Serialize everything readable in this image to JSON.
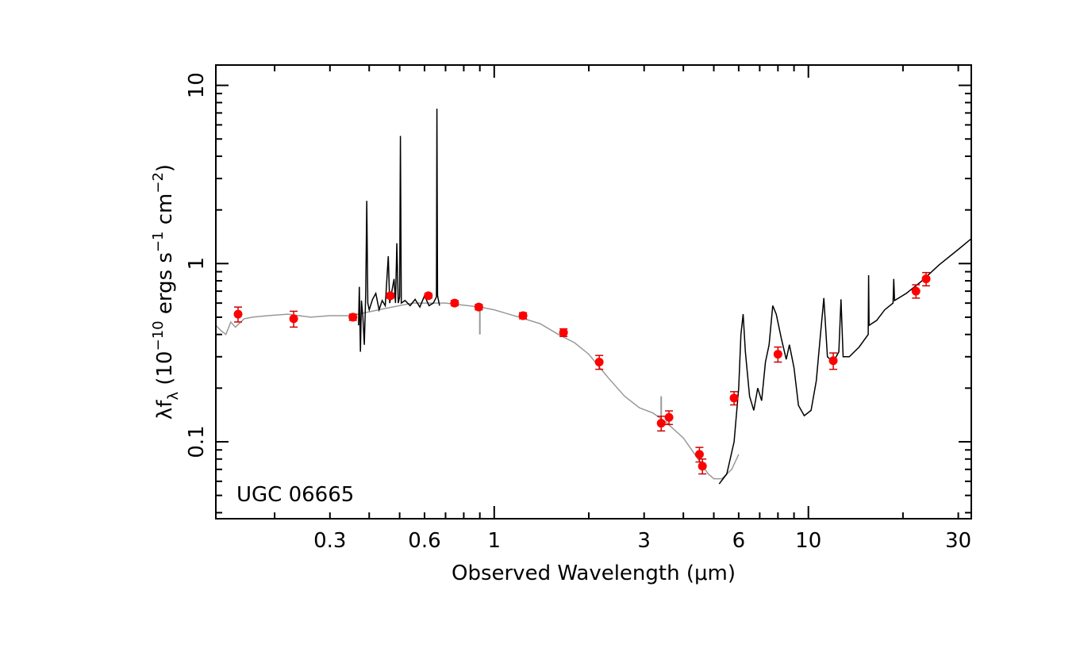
{
  "chart_data": {
    "type": "scatter",
    "title": "",
    "annotation": "UGC 06665",
    "xlabel": "Observed Wavelength (μm)",
    "ylabel": {
      "prefix": "λf",
      "sub": "λ",
      "open": " (10",
      "exp1": "−10",
      "mid": " ergs s",
      "exp2": "−1",
      "mid2": " cm",
      "exp3": "−2",
      "close": ")"
    },
    "xscale": "log",
    "yscale": "log",
    "xlim": [
      0.13,
      33
    ],
    "ylim": [
      0.037,
      13
    ],
    "xticks": [
      {
        "value": 0.3,
        "label": "0.3"
      },
      {
        "value": 0.6,
        "label": "0.6"
      },
      {
        "value": 1,
        "label": "1"
      },
      {
        "value": 3,
        "label": "3"
      },
      {
        "value": 6,
        "label": "6"
      },
      {
        "value": 10,
        "label": "10"
      },
      {
        "value": 30,
        "label": "30"
      }
    ],
    "yticks": [
      {
        "value": 0.1,
        "label": "0.1"
      },
      {
        "value": 1,
        "label": "1"
      },
      {
        "value": 10,
        "label": "10"
      }
    ],
    "colors": {
      "points": "#ff0000",
      "errorbars": "#cc0000",
      "model": "#999999",
      "spectrum": "#000000",
      "axes": "#000000"
    },
    "model_template": [
      [
        0.13,
        0.45
      ],
      [
        0.135,
        0.42
      ],
      [
        0.14,
        0.4
      ],
      [
        0.145,
        0.47
      ],
      [
        0.15,
        0.44
      ],
      [
        0.16,
        0.49
      ],
      [
        0.17,
        0.5
      ],
      [
        0.19,
        0.51
      ],
      [
        0.22,
        0.52
      ],
      [
        0.26,
        0.5
      ],
      [
        0.3,
        0.51
      ],
      [
        0.35,
        0.51
      ],
      [
        0.45,
        0.56
      ],
      [
        0.55,
        0.6
      ],
      [
        0.7,
        0.6
      ],
      [
        0.9,
        0.57
      ],
      [
        1.0,
        0.55
      ],
      [
        1.2,
        0.5
      ],
      [
        1.4,
        0.46
      ],
      [
        1.6,
        0.4
      ],
      [
        1.8,
        0.36
      ],
      [
        2.0,
        0.31
      ],
      [
        2.3,
        0.23
      ],
      [
        2.6,
        0.18
      ],
      [
        2.9,
        0.155
      ],
      [
        3.2,
        0.145
      ],
      [
        3.5,
        0.13
      ],
      [
        4.0,
        0.105
      ],
      [
        4.5,
        0.078
      ],
      [
        4.8,
        0.066
      ],
      [
        5.0,
        0.062
      ],
      [
        5.3,
        0.062
      ],
      [
        5.7,
        0.07
      ],
      [
        6.0,
        0.085
      ]
    ],
    "model_features": [
      {
        "x": 0.9,
        "y0": 0.55,
        "y1": 0.4
      },
      {
        "x": 3.4,
        "y0": 0.14,
        "y1": 0.18
      }
    ],
    "optical_spectrum": [
      [
        0.37,
        0.45
      ],
      [
        0.372,
        0.74
      ],
      [
        0.375,
        0.32
      ],
      [
        0.378,
        0.62
      ],
      [
        0.382,
        0.5
      ],
      [
        0.386,
        0.35
      ],
      [
        0.39,
        0.68
      ],
      [
        0.393,
        2.25
      ],
      [
        0.396,
        0.6
      ],
      [
        0.4,
        0.55
      ],
      [
        0.41,
        0.63
      ],
      [
        0.42,
        0.68
      ],
      [
        0.43,
        0.55
      ],
      [
        0.44,
        0.62
      ],
      [
        0.45,
        0.58
      ],
      [
        0.46,
        1.1
      ],
      [
        0.465,
        0.6
      ],
      [
        0.48,
        0.82
      ],
      [
        0.485,
        0.6
      ],
      [
        0.49,
        1.3
      ],
      [
        0.495,
        0.6
      ],
      [
        0.5,
        0.65
      ],
      [
        0.503,
        5.2
      ],
      [
        0.506,
        0.6
      ],
      [
        0.52,
        0.62
      ],
      [
        0.54,
        0.58
      ],
      [
        0.56,
        0.63
      ],
      [
        0.58,
        0.57
      ],
      [
        0.6,
        0.66
      ],
      [
        0.62,
        0.58
      ],
      [
        0.64,
        0.6
      ],
      [
        0.655,
        0.65
      ],
      [
        0.657,
        7.4
      ],
      [
        0.66,
        0.66
      ],
      [
        0.67,
        0.58
      ]
    ],
    "ir_spectrum": [
      [
        5.2,
        0.058
      ],
      [
        5.5,
        0.066
      ],
      [
        5.8,
        0.1
      ],
      [
        6.0,
        0.2
      ],
      [
        6.1,
        0.4
      ],
      [
        6.2,
        0.52
      ],
      [
        6.3,
        0.32
      ],
      [
        6.5,
        0.18
      ],
      [
        6.7,
        0.15
      ],
      [
        6.9,
        0.2
      ],
      [
        7.1,
        0.17
      ],
      [
        7.3,
        0.28
      ],
      [
        7.5,
        0.35
      ],
      [
        7.7,
        0.58
      ],
      [
        7.9,
        0.52
      ],
      [
        8.2,
        0.38
      ],
      [
        8.5,
        0.29
      ],
      [
        8.7,
        0.35
      ],
      [
        9.0,
        0.26
      ],
      [
        9.3,
        0.16
      ],
      [
        9.7,
        0.14
      ],
      [
        10.2,
        0.15
      ],
      [
        10.6,
        0.22
      ],
      [
        10.9,
        0.38
      ],
      [
        11.2,
        0.64
      ],
      [
        11.5,
        0.3
      ],
      [
        12.0,
        0.28
      ],
      [
        12.5,
        0.32
      ],
      [
        12.7,
        0.63
      ],
      [
        12.9,
        0.3
      ],
      [
        13.5,
        0.3
      ],
      [
        14.5,
        0.34
      ],
      [
        15.5,
        0.4
      ],
      [
        15.55,
        0.86
      ],
      [
        15.6,
        0.45
      ],
      [
        16.5,
        0.48
      ],
      [
        17.5,
        0.55
      ],
      [
        18.6,
        0.6
      ],
      [
        18.7,
        0.82
      ],
      [
        18.8,
        0.62
      ],
      [
        20.5,
        0.68
      ],
      [
        23,
        0.8
      ],
      [
        26,
        0.98
      ],
      [
        30,
        1.2
      ],
      [
        33,
        1.38
      ]
    ],
    "points": [
      {
        "x": 0.153,
        "y": 0.52,
        "err": 0.05
      },
      {
        "x": 0.23,
        "y": 0.49,
        "err": 0.05
      },
      {
        "x": 0.355,
        "y": 0.5,
        "err": 0.02
      },
      {
        "x": 0.467,
        "y": 0.66,
        "err": 0.02
      },
      {
        "x": 0.617,
        "y": 0.66,
        "err": 0.02
      },
      {
        "x": 0.748,
        "y": 0.6,
        "err": 0.02
      },
      {
        "x": 0.893,
        "y": 0.57,
        "err": 0.02
      },
      {
        "x": 1.235,
        "y": 0.51,
        "err": 0.02
      },
      {
        "x": 1.662,
        "y": 0.41,
        "err": 0.02
      },
      {
        "x": 2.159,
        "y": 0.28,
        "err": 0.025
      },
      {
        "x": 3.4,
        "y": 0.127,
        "err": 0.012
      },
      {
        "x": 3.6,
        "y": 0.137,
        "err": 0.012
      },
      {
        "x": 4.5,
        "y": 0.085,
        "err": 0.008
      },
      {
        "x": 4.6,
        "y": 0.073,
        "err": 0.007
      },
      {
        "x": 5.8,
        "y": 0.176,
        "err": 0.015
      },
      {
        "x": 8.0,
        "y": 0.31,
        "err": 0.03
      },
      {
        "x": 12.0,
        "y": 0.285,
        "err": 0.03
      },
      {
        "x": 22.0,
        "y": 0.7,
        "err": 0.06
      },
      {
        "x": 23.7,
        "y": 0.82,
        "err": 0.07
      }
    ]
  }
}
